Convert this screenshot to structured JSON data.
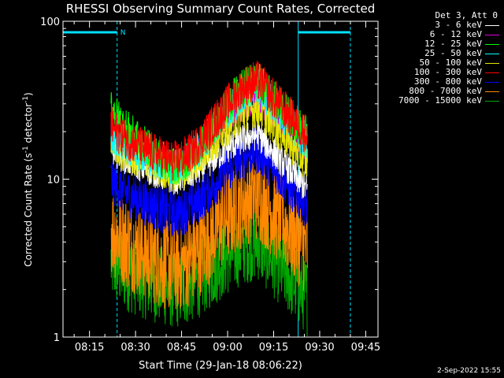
{
  "chart_data": {
    "type": "line",
    "title": "RHESSI Observing Summary Count Rates, Corrected",
    "xlabel": "Start Time (29-Jan-18 08:06:22)",
    "ylabel": "Corrected Count Rate (s",
    "ylabel_sup1": "-1",
    "ylabel_mid": " detector",
    "ylabel_sup2": "-1",
    "ylabel_end": ")",
    "yscale": "log",
    "ylim": [
      1,
      100
    ],
    "yticks": [
      "1",
      "10",
      "100"
    ],
    "xlim": [
      "08:06:22",
      "09:49:00"
    ],
    "xticks": [
      "08:15",
      "08:30",
      "08:45",
      "09:00",
      "09:15",
      "09:30",
      "09:45"
    ],
    "legend_title": "Det 3, Att 0",
    "legend_placement": "right",
    "series": [
      {
        "name": "3 - 6 keV",
        "color": "#ffffff",
        "start": 16,
        "min": 10,
        "peak": 19,
        "jitter": 0.1
      },
      {
        "name": "6 - 12 keV",
        "color": "#e000e0",
        "start": 22,
        "min": 12,
        "peak": 32,
        "jitter": 0.1
      },
      {
        "name": "12 - 25 keV",
        "color": "#00ff00",
        "start": 30,
        "min": 12,
        "peak": 42,
        "jitter": 0.12
      },
      {
        "name": "25 - 50 keV",
        "color": "#00ffff",
        "start": 20,
        "min": 12,
        "peak": 38,
        "jitter": 0.12
      },
      {
        "name": "50 - 100 keV",
        "color": "#e6e600",
        "start": 17,
        "min": 11,
        "peak": 28,
        "jitter": 0.12
      },
      {
        "name": "100 - 300 keV",
        "color": "#ff0000",
        "start": 22,
        "min": 13,
        "peak": 42,
        "jitter": 0.13
      },
      {
        "name": "300 - 800 keV",
        "color": "#0000ff",
        "start": 10,
        "min": 6,
        "peak": 15,
        "jitter": 0.15
      },
      {
        "name": "800 - 7000 keV",
        "color": "#ff8800",
        "start": 5,
        "min": 2.8,
        "peak": 8,
        "jitter": 0.3
      },
      {
        "name": "7000 - 15000 keV",
        "color": "#00aa00",
        "start": 3,
        "min": 2,
        "peak": 4,
        "jitter": 0.25
      }
    ],
    "data_window": [
      "08:22",
      "09:26"
    ],
    "minimum_time": "08:42",
    "peak_time": "09:10",
    "night_bars": [
      {
        "start": "08:06:22",
        "end": "08:24"
      },
      {
        "start": "09:23",
        "end": "09:40"
      }
    ],
    "night_label": "N",
    "saa_lines": [
      "08:24",
      "09:40"
    ],
    "flag_lines": [
      "08:06:22",
      "09:23"
    ]
  },
  "footer_date": "2-Sep-2022 15:55"
}
